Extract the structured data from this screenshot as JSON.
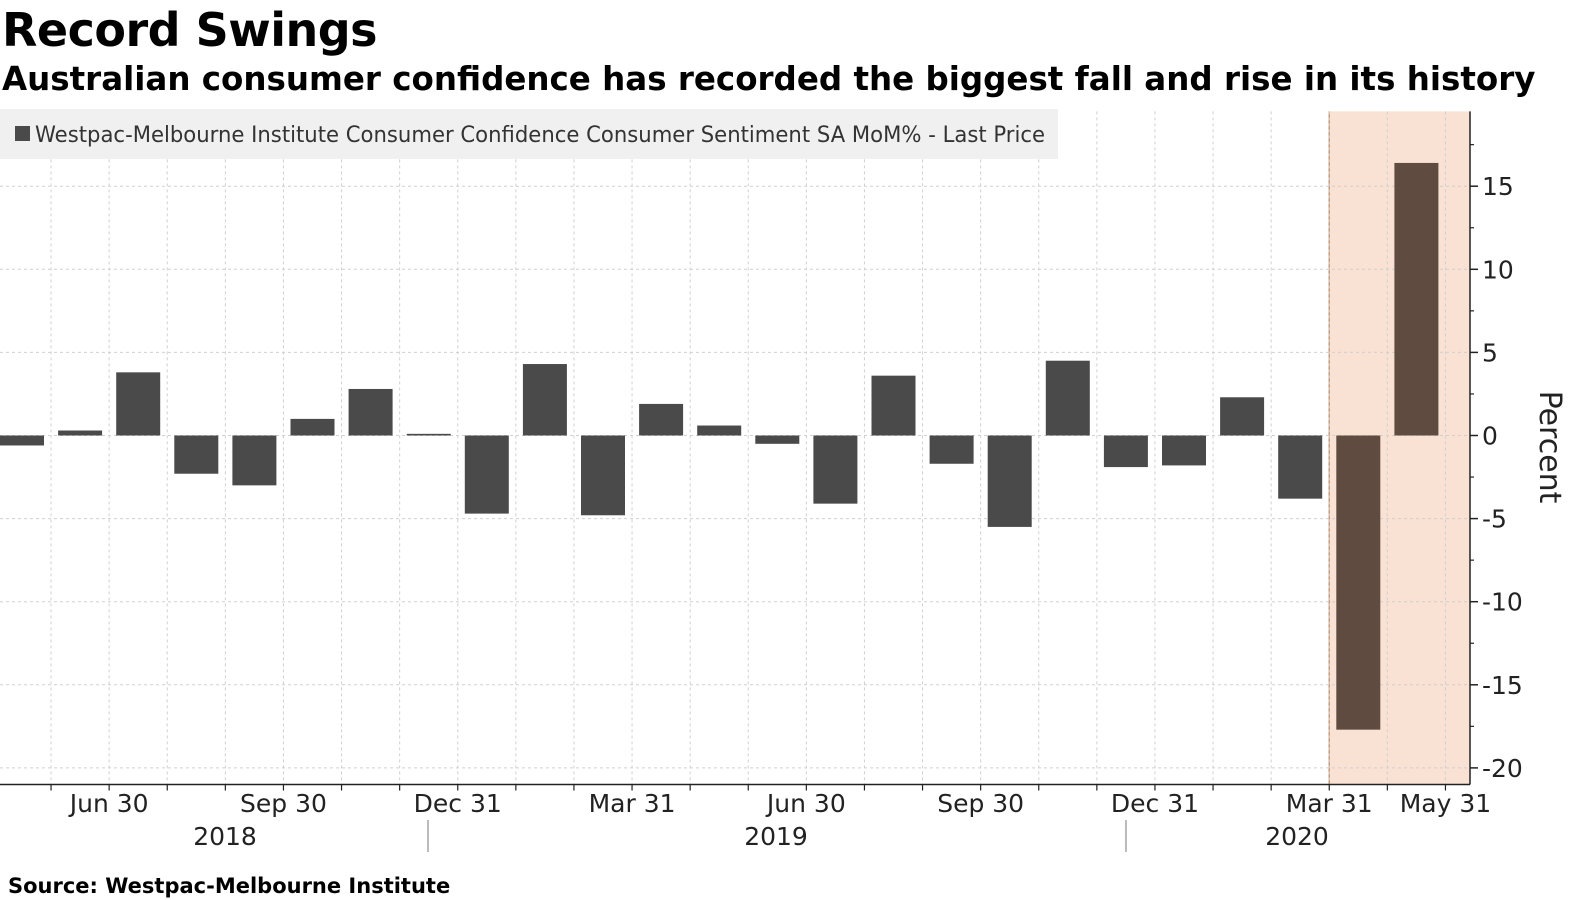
{
  "title": "Record Swings",
  "subtitle": "Australian consumer confidence has recorded the biggest fall and rise in its history",
  "source": "Source: Westpac-Melbourne Institute",
  "colors": {
    "bar": "#4a4a4a",
    "highlight_bar": "#5f4b3f",
    "highlight_band": "#f9e1d4",
    "highlight_line": "#c89a78",
    "grid": "#d0d0d0",
    "legend_bg": "#f0f0f0"
  },
  "chart_data": {
    "type": "bar",
    "title": "Record Swings",
    "legend": {
      "entries": [
        "Westpac-Melbourne Institute Consumer Confidence Consumer Sentiment SA MoM% - Last Price"
      ],
      "placement": "top-left"
    },
    "ylabel": "Percent",
    "ylim": [
      -21,
      19.5
    ],
    "yticks": [
      15,
      10,
      5,
      0,
      -5,
      -10,
      -15,
      -20
    ],
    "ytick_labels": [
      "15",
      "10",
      "5",
      "0",
      "-5",
      "-10",
      "-15",
      "-20"
    ],
    "grid": true,
    "categories": [
      "2018-05",
      "2018-06",
      "2018-07",
      "2018-08",
      "2018-09",
      "2018-10",
      "2018-11",
      "2018-12",
      "2019-01",
      "2019-02",
      "2019-03",
      "2019-04",
      "2019-05",
      "2019-06",
      "2019-07",
      "2019-08",
      "2019-09",
      "2019-10",
      "2019-11",
      "2019-12",
      "2020-01",
      "2020-02",
      "2020-03",
      "2020-04",
      "2020-05"
    ],
    "values": [
      -0.6,
      0.3,
      3.8,
      -2.3,
      -3.0,
      1.0,
      2.8,
      0.1,
      -4.7,
      4.3,
      -4.8,
      1.9,
      0.6,
      -0.5,
      -4.1,
      3.6,
      -1.7,
      -5.5,
      4.5,
      -1.9,
      -1.8,
      2.3,
      -3.8,
      -17.7,
      16.4
    ],
    "xtick_labels": [
      "Jun 30",
      "Sep 30",
      "Dec 31",
      "Mar 31",
      "Jun 30",
      "Sep 30",
      "Dec 31",
      "Mar 31",
      "May 31"
    ],
    "xtick_months": [
      "2018-06",
      "2018-09",
      "2018-12",
      "2019-03",
      "2019-06",
      "2019-09",
      "2019-12",
      "2020-03",
      "2020-05"
    ],
    "year_labels": [
      "2018",
      "2019",
      "2020"
    ],
    "highlight": {
      "from": "2020-03",
      "to": "2020-05",
      "categories": [
        "2020-04",
        "2020-05"
      ]
    }
  }
}
